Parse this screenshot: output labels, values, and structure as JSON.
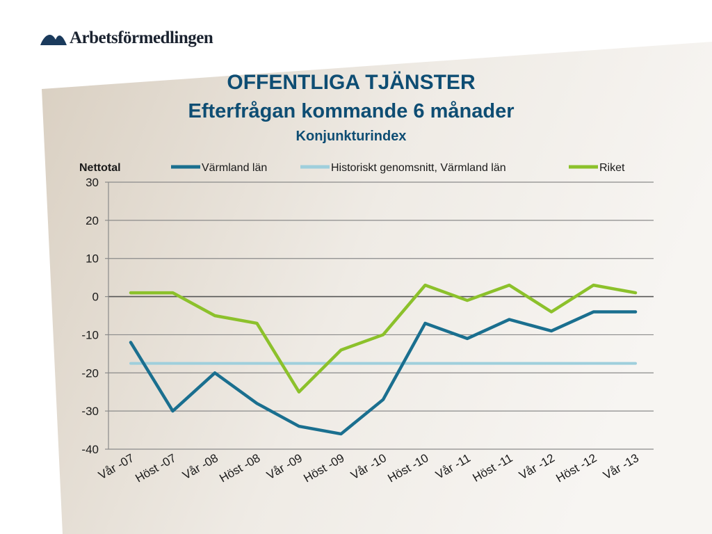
{
  "brand": {
    "name": "Arbetsförmedlingen",
    "logo_icon": "arbetsformedlingen-wave-icon"
  },
  "slide": {
    "title": "OFFENTLIGA TJÄNSTER",
    "subtitle": "Efterfrågan kommande 6 månader",
    "subsubtitle": "Konjunkturindex"
  },
  "colors": {
    "title": "#0e4d73",
    "varmland": "#1a6f8f",
    "historiskt": "#9fcfdc",
    "riket": "#8cc12b"
  },
  "chart_data": {
    "type": "line",
    "ylabel": "Nettotal",
    "ylim": [
      -40,
      30
    ],
    "yticks": [
      "30",
      "20",
      "10",
      "0",
      "-10",
      "-20",
      "-30",
      "-40"
    ],
    "ytick_values": [
      30,
      20,
      10,
      0,
      -10,
      -20,
      -30,
      -40
    ],
    "categories": [
      "Vår -07",
      "Höst -07",
      "Vår -08",
      "Höst -08",
      "Vår -09",
      "Höst -09",
      "Vår -10",
      "Höst -10",
      "Vår -11",
      "Höst -11",
      "Vår -12",
      "Höst -12",
      "Vår -13"
    ],
    "grid": true,
    "legend_position": "top",
    "series": [
      {
        "name": "Värmland län",
        "color": "#1a6f8f",
        "values": [
          -12,
          -30,
          -20,
          -28,
          -34,
          -36,
          -27,
          -7,
          -11,
          -6,
          -9,
          -4,
          -4
        ]
      },
      {
        "name": "Historiskt genomsnitt, Värmland län",
        "color": "#9fcfdc",
        "values": [
          -17.5,
          -17.5,
          -17.5,
          -17.5,
          -17.5,
          -17.5,
          -17.5,
          -17.5,
          -17.5,
          -17.5,
          -17.5,
          -17.5,
          -17.5
        ]
      },
      {
        "name": "Riket",
        "color": "#8cc12b",
        "values": [
          1,
          1,
          -5,
          -7,
          -25,
          -14,
          -10,
          3,
          -1,
          3,
          -4,
          3,
          1
        ]
      }
    ]
  }
}
